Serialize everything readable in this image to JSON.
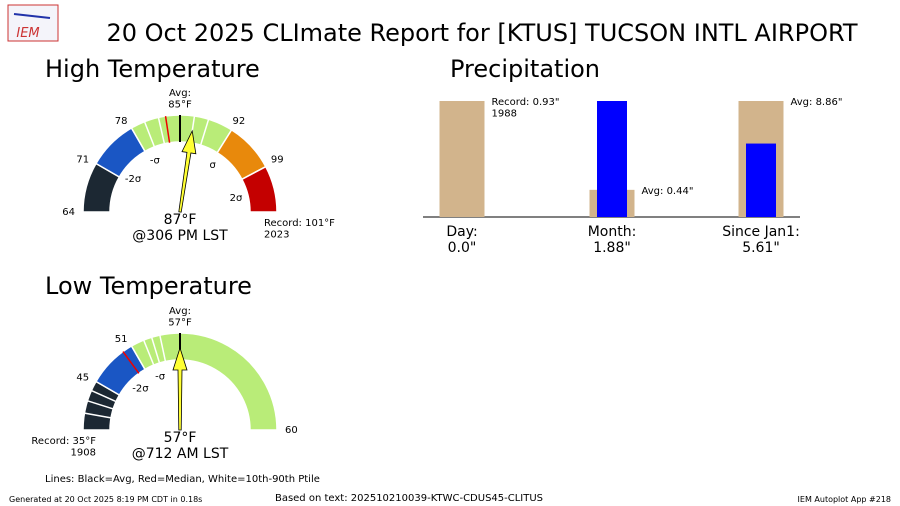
{
  "header": {
    "title": "20 Oct 2025 CLImate Report for [KTUS] TUCSON INTL AIRPORT",
    "logo": "IEM"
  },
  "chart_data": [
    {
      "type": "gauge",
      "title": "High Temperature",
      "lim": [
        64,
        106
      ],
      "center": 85,
      "center_label": "Avg:\n85°F",
      "ticks": [
        64,
        71,
        78,
        92,
        99
      ],
      "sigma_labels": [
        {
          "value": 72.4,
          "label": "-2σ"
        },
        {
          "value": 79,
          "label": "-σ"
        },
        {
          "value": 93,
          "label": "σ"
        },
        {
          "value": 102.5,
          "label": "2σ"
        }
      ],
      "bands": [
        {
          "from": 64,
          "to": 71,
          "color": "#1c2833"
        },
        {
          "from": 71,
          "to": 78,
          "color": "#1a56c4"
        },
        {
          "from": 78,
          "to": 92.5,
          "color": "#b9ec78"
        },
        {
          "from": 92.5,
          "to": 99.5,
          "color": "#e8890c"
        },
        {
          "from": 99.5,
          "to": 106,
          "color": "#c40000"
        }
      ],
      "median": 83,
      "percentile_lines": [
        80,
        82,
        87,
        89
      ],
      "value": 87,
      "value_label": "87°F",
      "time_label": "@306 PM LST",
      "needle_color": "#ffff33",
      "record_label": "Record: 101°F\n2023",
      "record_side": "right"
    },
    {
      "type": "bar",
      "title": "Precipitation",
      "scale": "per-category",
      "categories": [
        "Day:",
        "Month:",
        "Since Jan1:"
      ],
      "series": [
        {
          "color": "#d2b48c",
          "values": [
            0.93,
            0.44,
            8.86
          ],
          "value_labels": [
            "Record: 0.93\"\n1988",
            "Avg: 0.44\"",
            "Avg: 8.86\""
          ]
        },
        {
          "color": "#0000ff",
          "values": [
            0.0,
            1.88,
            5.61
          ],
          "value_labels": [
            "0.0\"",
            "1.88\"",
            "5.61\""
          ]
        }
      ]
    },
    {
      "type": "gauge",
      "title": "Low Temperature",
      "lim": [
        39,
        60
      ],
      "center": 57,
      "center_label": "Avg:\n57°F",
      "ticks": [
        45,
        51,
        60
      ],
      "sigma_labels": [
        {
          "value": 48.4,
          "label": "-2σ"
        },
        {
          "value": 53,
          "label": "-σ"
        }
      ],
      "bands": [
        {
          "from": 39,
          "to": 45,
          "color": "#1c2833"
        },
        {
          "from": 45,
          "to": 51,
          "color": "#1a56c4"
        },
        {
          "from": 51,
          "to": 60,
          "color": "#b9ec78"
        }
      ],
      "median": 49.8,
      "percentile_lines": [
        41,
        42.5,
        43.8,
        52.6,
        53.6,
        54.6
      ],
      "value": 57,
      "value_label": "57°F",
      "time_label": "@712 AM LST",
      "needle_color": "#ffff33",
      "record_label": "Record: 35°F\n1908",
      "record_side": "left"
    }
  ],
  "footer": {
    "legend_note": "Lines: Black=Avg, Red=Median, White=10th-90th Ptile",
    "generated": "Generated at 20 Oct 2025 8:19 PM CDT in 0.18s",
    "source": "Based on text: 202510210039-KTWC-CDUS45-CLITUS",
    "app": "IEM Autoplot App #218"
  }
}
